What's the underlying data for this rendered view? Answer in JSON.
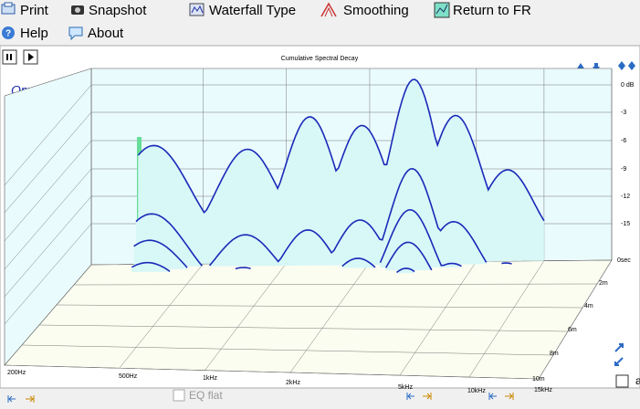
{
  "toolbar": {
    "row1": [
      "Print",
      "Snapshot",
      "Waterfall Type",
      "Smoothing",
      "Return to FR"
    ],
    "row2": [
      "Help",
      "About"
    ]
  },
  "plot": {
    "title": "Cumulative Spectral Decay",
    "brand": "OmniMic",
    "db_labels": [
      "0 dB",
      "-3",
      "-6",
      "-9",
      "-12",
      "-15"
    ],
    "time_labels": [
      "0sec",
      "2m",
      "4m",
      "6m",
      "8m",
      "10m"
    ],
    "freq_labels": [
      "200Hz",
      "500Hz",
      "1kHz",
      "2kHz",
      "5kHz",
      "10kHz",
      "15kHz"
    ]
  },
  "footer": {
    "eq_flat": "EQ flat",
    "checkbox_label": "a"
  }
}
